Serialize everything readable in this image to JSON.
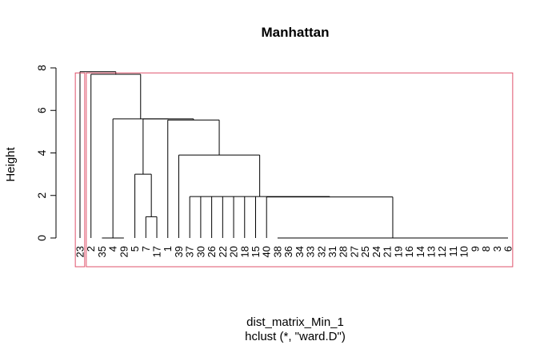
{
  "chart_data": {
    "type": "dendrogram",
    "title": "Manhattan",
    "ylabel": "Height",
    "xlabel": "dist_matrix_Min_1",
    "sub": "hclust (*, \"ward.D\")",
    "ylim": [
      0,
      8
    ],
    "yticks": [
      0,
      2,
      4,
      6,
      8
    ],
    "leaf_order": [
      "23",
      "2",
      "35",
      "4",
      "29",
      "5",
      "7",
      "17",
      "1",
      "39",
      "37",
      "30",
      "26",
      "22",
      "20",
      "18",
      "15",
      "40",
      "38",
      "36",
      "34",
      "33",
      "32",
      "31",
      "28",
      "27",
      "25",
      "24",
      "21",
      "19",
      "16",
      "14",
      "13",
      "12",
      "11",
      "10",
      "9",
      "8",
      "3",
      "6"
    ],
    "merges": [
      {
        "items": [
          "35",
          "4",
          "29"
        ],
        "height": 0.0
      },
      {
        "items": [
          "38",
          "36",
          "34",
          "33",
          "32",
          "31",
          "28",
          "27",
          "25",
          "24",
          "21",
          "19",
          "16",
          "14",
          "13",
          "12",
          "11",
          "10",
          "9",
          "8",
          "3",
          "6"
        ],
        "height": 0.0
      },
      {
        "items": [
          "7",
          "17"
        ],
        "height": 1.0
      },
      {
        "items": [
          "5",
          "{7,17}"
        ],
        "height": 3.0
      },
      {
        "items": [
          "40",
          "{38..6}"
        ],
        "height": 1.93
      },
      {
        "items": [
          "37",
          "30",
          "26",
          "22",
          "20",
          "18",
          "15",
          "{40..6}"
        ],
        "height": 1.95
      },
      {
        "items": [
          "39",
          "{37..6}"
        ],
        "height": 3.9
      },
      {
        "items": [
          "1",
          "{39..6}"
        ],
        "height": 5.55
      },
      {
        "items": [
          "{5,7,17}",
          "{1..6}"
        ],
        "height": 5.6
      },
      {
        "items": [
          "{35,4,29}",
          "{5..6}"
        ],
        "height": 5.6
      },
      {
        "items": [
          "2",
          "{35..6}"
        ],
        "height": 7.7
      },
      {
        "items": [
          "23",
          "{2..6}"
        ],
        "height": 7.82
      }
    ],
    "rect_clusters": [
      [
        "23"
      ],
      [
        "2",
        "35",
        "4",
        "29",
        "5",
        "7",
        "17",
        "1",
        "39",
        "37",
        "30",
        "26",
        "22",
        "20",
        "18",
        "15",
        "40",
        "38",
        "36",
        "34",
        "33",
        "32",
        "31",
        "28",
        "27",
        "25",
        "24",
        "21",
        "19",
        "16",
        "14",
        "13",
        "12",
        "11",
        "10",
        "9",
        "8",
        "3",
        "6"
      ]
    ],
    "rect_color": "#df536b",
    "line_color": "#000000"
  }
}
